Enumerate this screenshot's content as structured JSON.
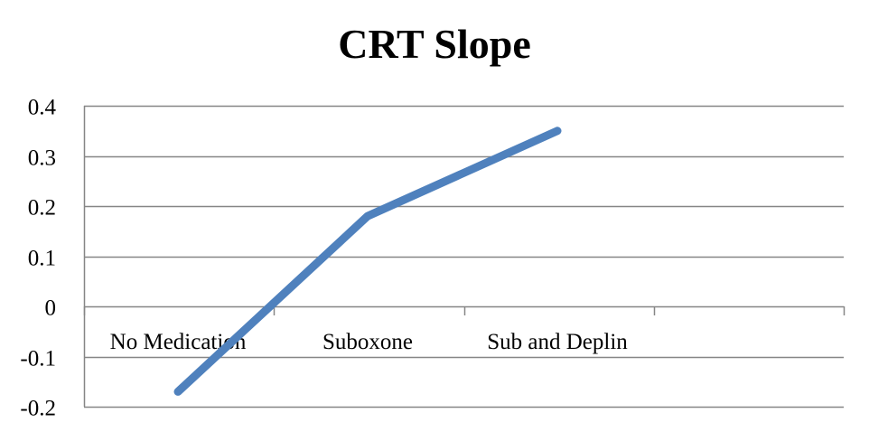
{
  "chart_data": {
    "type": "line",
    "title": "CRT Slope",
    "categories": [
      "No Medication",
      "Suboxone",
      "Sub and Deplin"
    ],
    "series": [
      {
        "values": [
          -0.17,
          0.18,
          0.35
        ],
        "color": "#4F81BD"
      }
    ],
    "ylim": [
      -0.2,
      0.4
    ],
    "yticks": [
      0.4,
      0.3,
      0.2,
      0.1,
      0,
      -0.1,
      -0.2
    ],
    "ytick_labels": [
      "0.4",
      "0.3",
      "0.2",
      "0.1",
      "0",
      "-0.1",
      "-0.2"
    ],
    "grid": true,
    "gridline_color": "#868686",
    "legend": "none"
  }
}
